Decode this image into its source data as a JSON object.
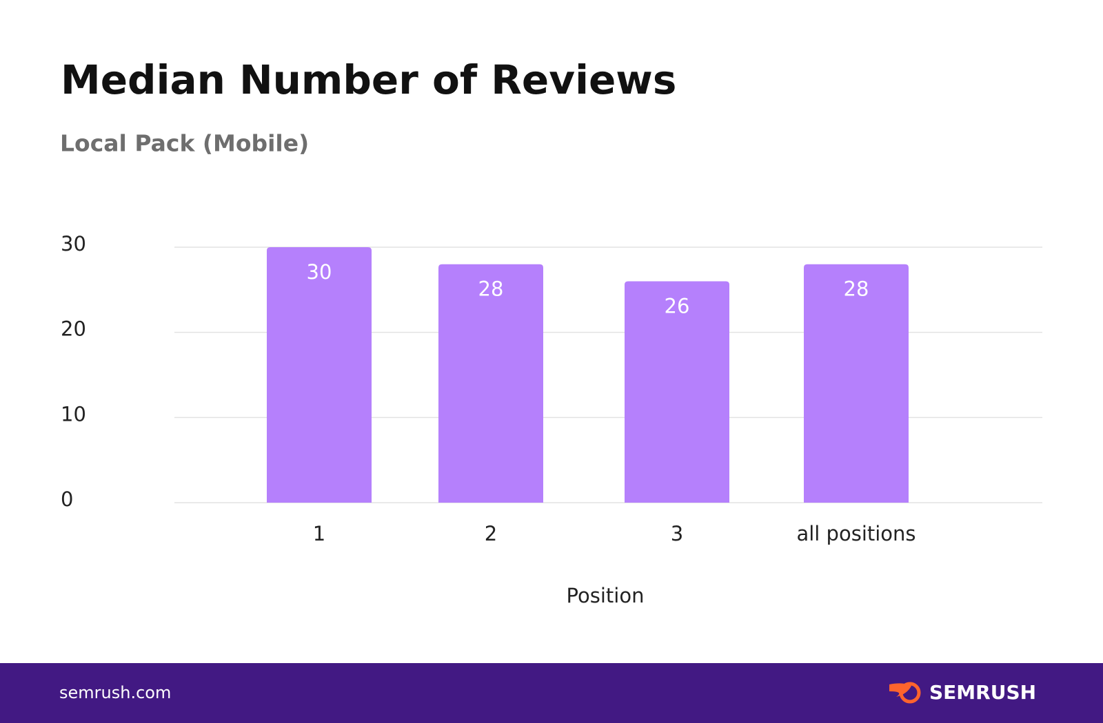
{
  "chart_data": {
    "type": "bar",
    "title": "Median Number of Reviews",
    "subtitle": "Local Pack (Mobile)",
    "categories": [
      "1",
      "2",
      "3",
      "all positions"
    ],
    "values": [
      30,
      28,
      26,
      28
    ],
    "color": "#b580fc",
    "x_label": "Position",
    "ylim": [
      0,
      30
    ],
    "yticks": [
      0,
      10,
      20,
      30
    ],
    "grid": true
  },
  "footer": {
    "site": "semrush.com",
    "brand": "SEMRUSH"
  }
}
